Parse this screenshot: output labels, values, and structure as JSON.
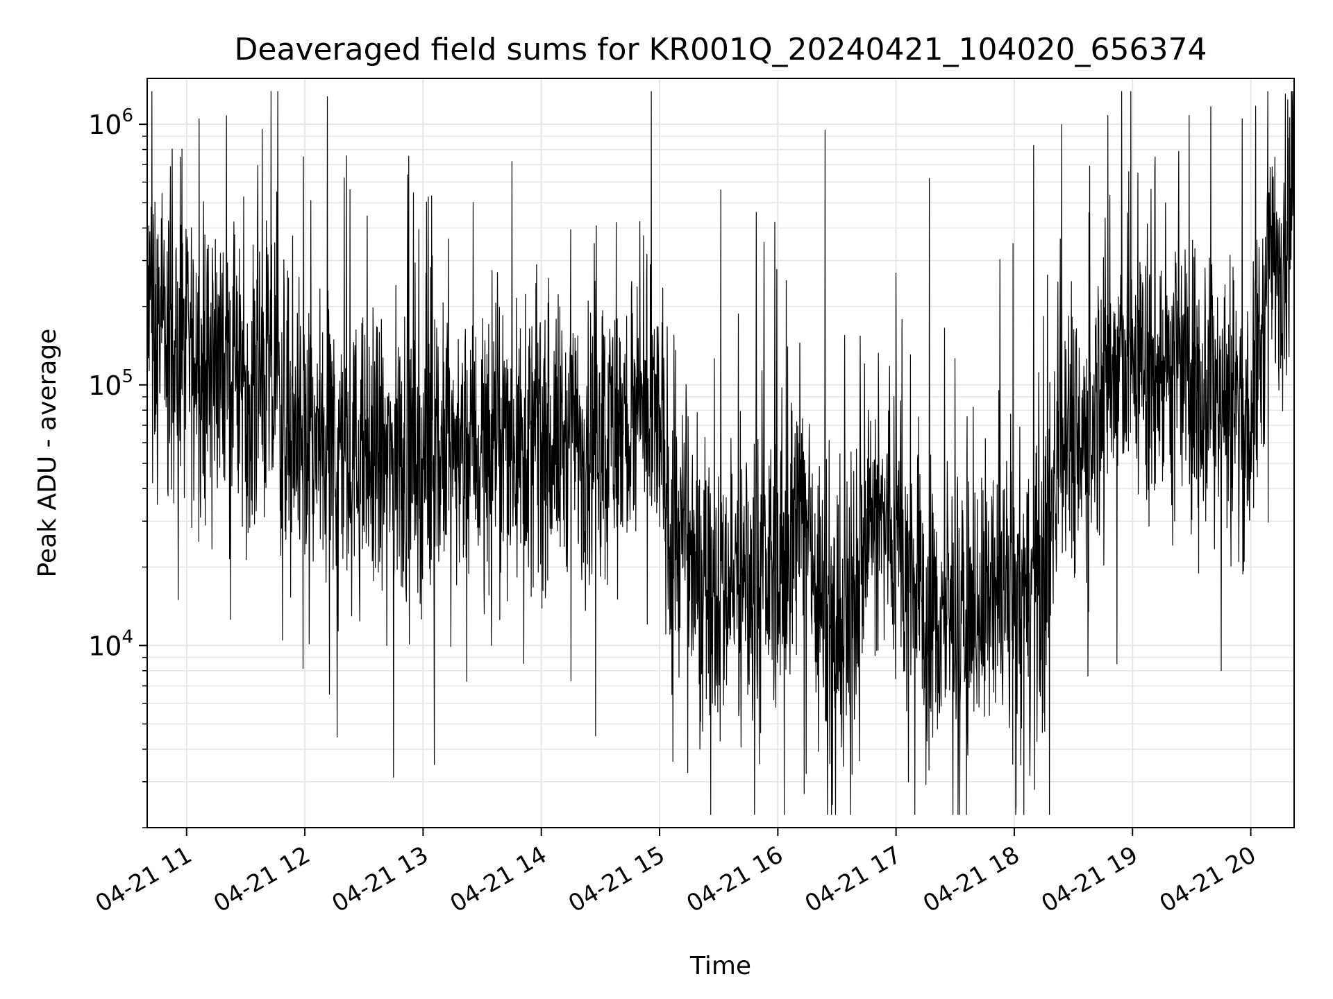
{
  "chart_data": {
    "type": "line",
    "title": "Deaveraged field sums for KR001Q_20240421_104020_656374",
    "xlabel": "Time",
    "ylabel": "Peak ADU - average",
    "yscale": "log",
    "xlim": [
      "04-21 10:40",
      "04-21 20:22"
    ],
    "ylim": [
      2000,
      1500000
    ],
    "grid": true,
    "line_color": "#000000",
    "grid_color": "#e6e6e6",
    "x_ticks": [
      "04-21 11",
      "04-21 12",
      "04-21 13",
      "04-21 14",
      "04-21 15",
      "04-21 16",
      "04-21 17",
      "04-21 18",
      "04-21 19",
      "04-21 20"
    ],
    "y_ticks": [
      {
        "base": "10",
        "exp": "4",
        "value": 10000
      },
      {
        "base": "10",
        "exp": "5",
        "value": 100000
      },
      {
        "base": "10",
        "exp": "6",
        "value": 1000000
      }
    ],
    "series": [
      {
        "x_unit": "hours",
        "x": [
          10.67,
          10.75,
          10.83,
          10.92,
          11.0,
          11.25,
          11.5,
          11.75,
          12.0,
          12.25,
          12.5,
          12.75,
          13.0,
          13.25,
          13.5,
          13.75,
          14.0,
          14.25,
          14.5,
          14.75,
          15.0,
          15.1,
          15.25,
          15.5,
          15.75,
          16.0,
          16.25,
          16.4,
          16.6,
          16.75,
          17.0,
          17.25,
          17.5,
          17.75,
          18.0,
          18.25,
          18.4,
          18.6,
          18.75,
          19.0,
          19.25,
          19.5,
          19.75,
          20.0,
          20.15,
          20.37
        ],
        "values": [
          180000,
          160000,
          150000,
          120000,
          130000,
          130000,
          110000,
          95000,
          60000,
          55000,
          50000,
          52000,
          50000,
          55000,
          58000,
          60000,
          62000,
          60000,
          65000,
          68000,
          70000,
          30000,
          22000,
          18000,
          17000,
          20000,
          35000,
          12000,
          11000,
          30000,
          28000,
          12000,
          13000,
          15000,
          14000,
          16000,
          80000,
          60000,
          110000,
          120000,
          115000,
          105000,
          95000,
          70000,
          250000,
          500000
        ],
        "peaks": [
          1050000,
          750000,
          640000,
          720000,
          420000,
          560000,
          950000,
          620000,
          830000,
          650000,
          1050000
        ],
        "troughs": [
          15000,
          10500,
          10000,
          10000,
          4500,
          4000,
          2700,
          3000,
          3500,
          8500,
          8000
        ]
      }
    ]
  }
}
